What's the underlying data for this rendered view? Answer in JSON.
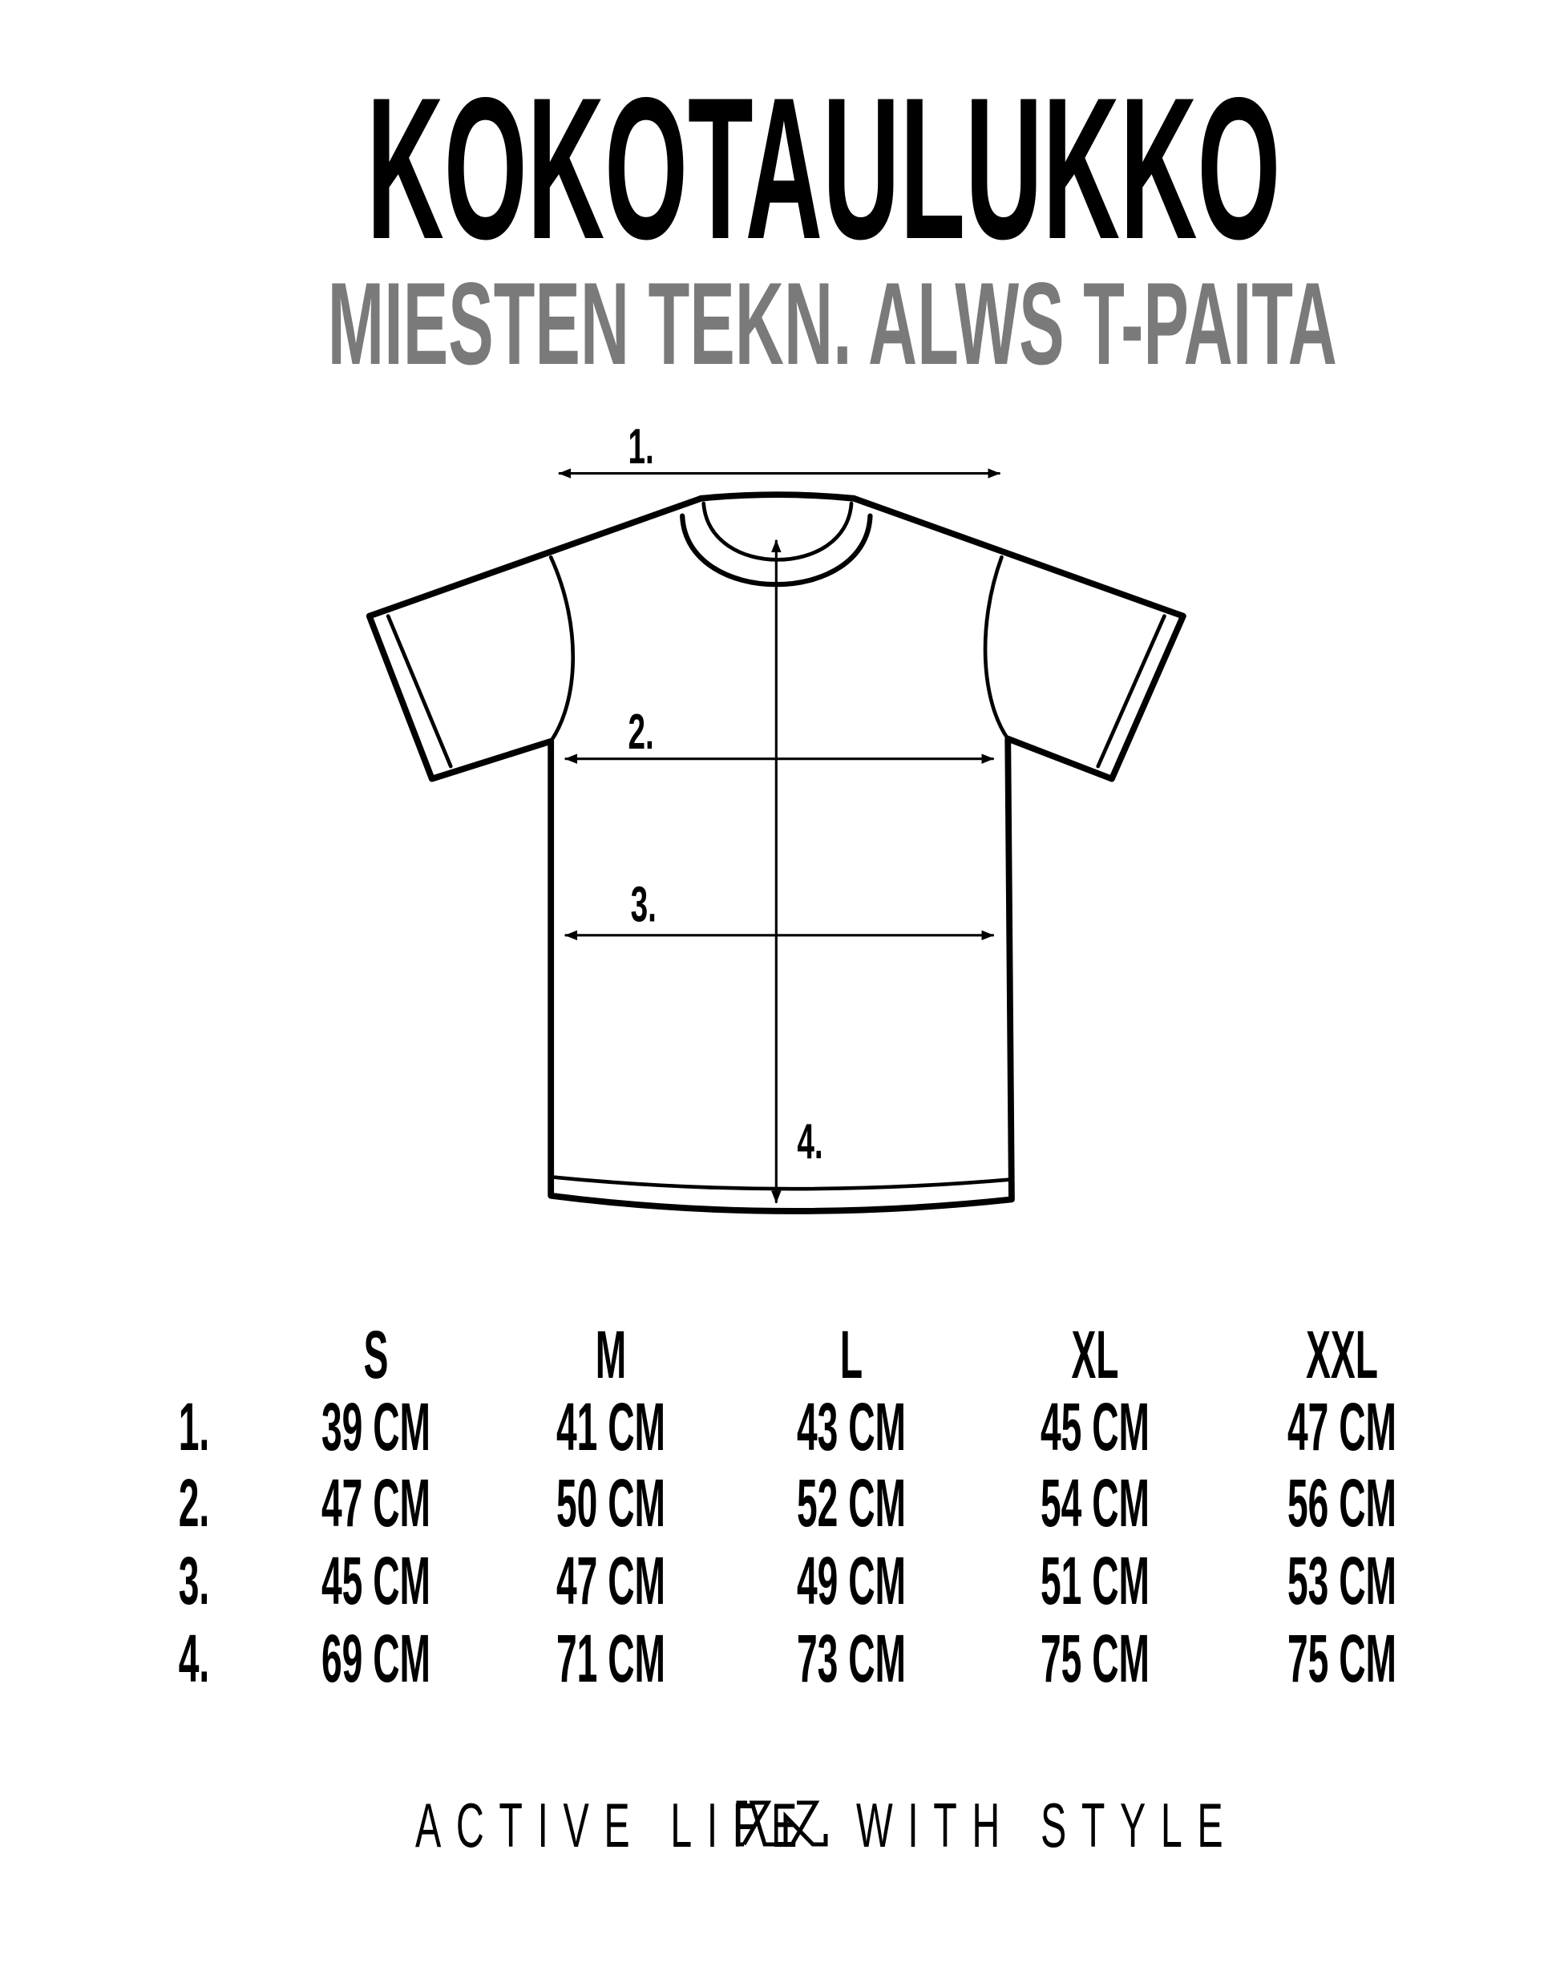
{
  "header": {
    "title": "KOKOTAULUKKO",
    "subtitle": "MIESTEN TEKN. ALWS T-PAITA"
  },
  "diagram": {
    "measure_labels": [
      "1.",
      "2.",
      "3.",
      "4."
    ]
  },
  "size_table": {
    "columns": [
      "S",
      "M",
      "L",
      "XL",
      "XXL"
    ],
    "rows": [
      {
        "label": "1.",
        "values": [
          "39 CM",
          "41 CM",
          "43 CM",
          "45 CM",
          "47 CM"
        ]
      },
      {
        "label": "2.",
        "values": [
          "47 CM",
          "50 CM",
          "52 CM",
          "54 CM",
          "56 CM"
        ]
      },
      {
        "label": "3.",
        "values": [
          "45 CM",
          "47 CM",
          "49 CM",
          "51 CM",
          "53 CM"
        ]
      },
      {
        "label": "4.",
        "values": [
          "69 CM",
          "71 CM",
          "73 CM",
          "75 CM",
          "75 CM"
        ]
      }
    ]
  },
  "footer": {
    "left": "ACTIVE LIFE",
    "right": "WITH STYLE",
    "logo": "ALWS"
  },
  "colors": {
    "title": "#000000",
    "subtitle": "#7a7a7a"
  }
}
